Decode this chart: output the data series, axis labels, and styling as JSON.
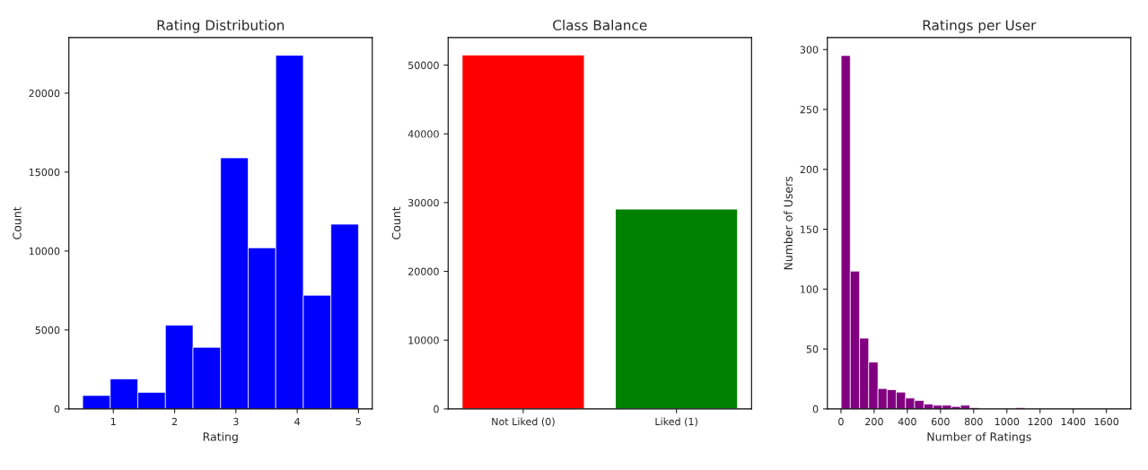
{
  "chart_data": [
    {
      "type": "histogram",
      "title": "Rating Distribution",
      "xlabel": "Rating",
      "ylabel": "Count",
      "color": "#0000ff",
      "bins": [
        0.5,
        0.95,
        1.4,
        1.85,
        2.3,
        2.75,
        3.2,
        3.65,
        4.1,
        4.55,
        5.0
      ],
      "values": [
        850,
        1900,
        1050,
        5300,
        3900,
        15900,
        10200,
        22400,
        7200,
        11700
      ],
      "xlim": [
        0.275,
        5.225
      ],
      "xticks": [
        1,
        2,
        3,
        4,
        5
      ],
      "ylim": [
        0,
        23520
      ],
      "yticks": [
        0,
        5000,
        10000,
        15000,
        20000
      ]
    },
    {
      "type": "bar",
      "title": "Class Balance",
      "ylabel": "Count",
      "categories": [
        "Not Liked (0)",
        "Liked (1)"
      ],
      "values": [
        51500,
        29100
      ],
      "colors": [
        "#ff0000",
        "#008000"
      ],
      "ylim": [
        0,
        54000
      ],
      "yticks": [
        0,
        10000,
        20000,
        30000,
        40000,
        50000
      ]
    },
    {
      "type": "histogram",
      "title": "Ratings per User",
      "xlabel": "Number of Ratings",
      "ylabel": "Number of Users",
      "color": "#800080",
      "bins": [
        1,
        56,
        112,
        167,
        223,
        278,
        333,
        389,
        444,
        500,
        555,
        610,
        666,
        721,
        777,
        832,
        887,
        943,
        998,
        1054,
        1109,
        1164,
        1220,
        1275,
        1331,
        1386,
        1441,
        1497,
        1552,
        1608,
        1663
      ],
      "values": [
        295,
        115,
        59,
        39,
        17,
        16,
        14,
        9,
        7,
        4,
        3,
        3,
        2,
        3,
        1,
        0,
        0,
        0,
        0,
        1,
        0,
        0,
        0,
        0,
        0,
        0,
        0,
        0,
        0,
        0
      ],
      "xlim": [
        -82,
        1747
      ],
      "xticks": [
        0,
        200,
        400,
        600,
        800,
        1000,
        1200,
        1400,
        1600
      ],
      "ylim": [
        0,
        310
      ],
      "yticks": [
        0,
        50,
        100,
        150,
        200,
        250,
        300
      ]
    }
  ]
}
